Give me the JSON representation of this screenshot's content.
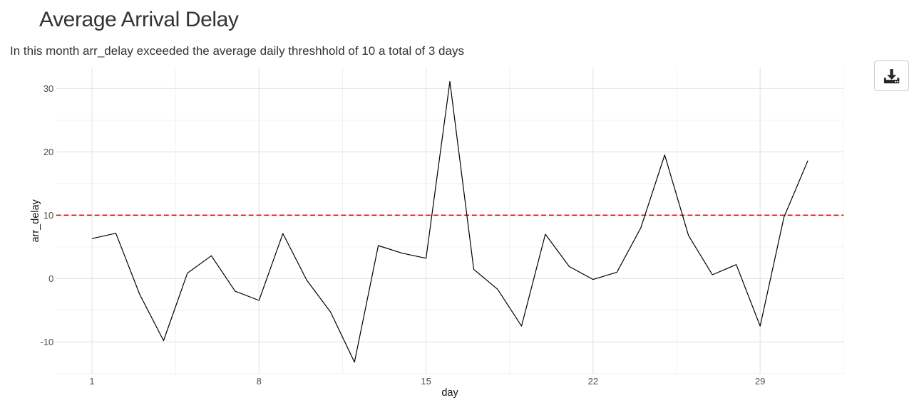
{
  "page": {
    "title": "Average Arrival Delay",
    "subtitle": "In this month arr_delay exceeded the average daily threshhold of 10 a total of 3 days"
  },
  "toolbar": {
    "download_icon": "download"
  },
  "chart_data": {
    "type": "line",
    "x": [
      1,
      2,
      3,
      4,
      5,
      6,
      7,
      8,
      9,
      10,
      11,
      12,
      13,
      14,
      15,
      16,
      17,
      18,
      19,
      20,
      21,
      22,
      23,
      24,
      25,
      26,
      27,
      28,
      29,
      30,
      31
    ],
    "series": [
      {
        "name": "arr_delay",
        "values": [
          6.3,
          7.15,
          -2.5,
          -9.8,
          0.85,
          3.6,
          -2.0,
          -3.45,
          7.1,
          -0.25,
          -5.3,
          -13.2,
          5.2,
          4.0,
          3.2,
          31.1,
          1.45,
          -1.7,
          -7.5,
          7.0,
          1.9,
          -0.15,
          1.0,
          8.0,
          19.5,
          6.8,
          0.6,
          2.2,
          -7.5,
          9.7,
          18.6
        ]
      }
    ],
    "threshold_line": {
      "y": 10,
      "color": "#ff0000",
      "style": "dashed"
    },
    "title": "",
    "xlabel": "day",
    "ylabel": "arr_delay",
    "x_ticks": [
      1,
      8,
      15,
      22,
      29
    ],
    "x_minor": [
      4.5,
      11.5,
      18.5,
      25.5,
      32.5
    ],
    "y_ticks": [
      -10,
      0,
      10,
      20,
      30
    ],
    "y_minor": [
      -15,
      -5,
      5,
      15,
      25
    ],
    "xlim": [
      -0.5,
      32.5
    ],
    "ylim": [
      -15.1,
      33.3
    ],
    "grid": true,
    "legend": false,
    "line_color": "#000000",
    "grid_major_color": "#e3e3e3",
    "grid_minor_color": "#f0f0f0",
    "tick_label_color": "#4d4d4d",
    "axis_title_color": "#111111"
  }
}
